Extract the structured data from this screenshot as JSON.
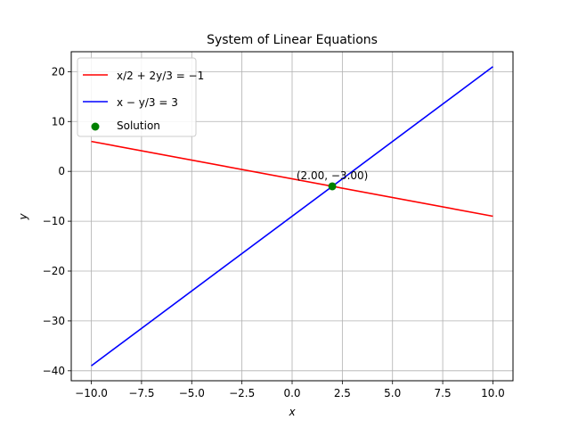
{
  "chart_data": {
    "type": "line",
    "title": "System of Linear Equations",
    "xlabel": "x",
    "ylabel": "y",
    "xlim": [
      -11,
      11
    ],
    "ylim": [
      -42,
      24
    ],
    "grid": true,
    "legend_position": "top-left",
    "x_ticks": [
      -10.0,
      -7.5,
      -5.0,
      -2.5,
      0.0,
      2.5,
      5.0,
      7.5,
      10.0
    ],
    "x_tick_labels": [
      "−10.0",
      "−7.5",
      "−5.0",
      "−2.5",
      "0.0",
      "2.5",
      "5.0",
      "7.5",
      "10.0"
    ],
    "y_ticks": [
      -40,
      -30,
      -20,
      -10,
      0,
      10,
      20
    ],
    "y_tick_labels": [
      "−40",
      "−30",
      "−20",
      "−10",
      "0",
      "10",
      "20"
    ],
    "series": [
      {
        "name": "x/2 + 2y/3 = −1",
        "color": "#ff0000",
        "x": [
          -10,
          10
        ],
        "y": [
          6,
          -9
        ]
      },
      {
        "name": "x − y/3 = 3",
        "color": "#0000ff",
        "x": [
          -10,
          10
        ],
        "y": [
          -39,
          21
        ]
      }
    ],
    "points": [
      {
        "name": "Solution",
        "color": "#008000",
        "x": 2,
        "y": -3,
        "label": "(2.00, −3.00)"
      }
    ]
  }
}
